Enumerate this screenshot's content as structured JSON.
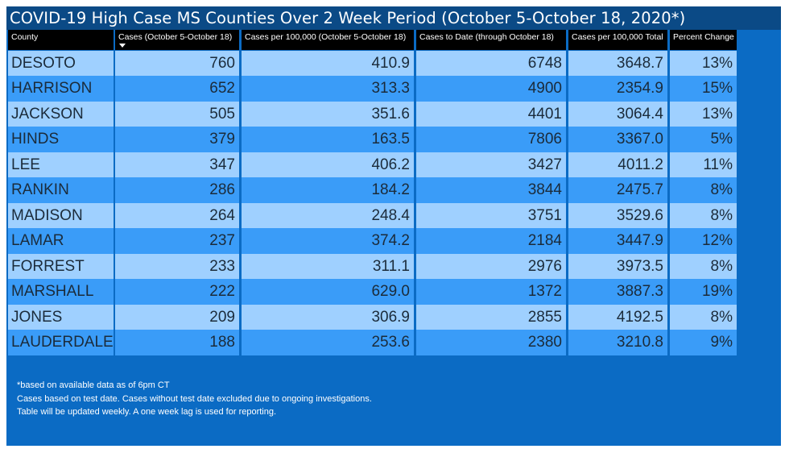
{
  "title": "COVID-19 High Case MS Counties Over 2 Week Period (October 5-October 18, 2020*)",
  "table": {
    "columns": [
      {
        "label": "County",
        "sorted": false
      },
      {
        "label": "Cases (October 5-October 18)",
        "sorted": true,
        "sort_direction": "descending"
      },
      {
        "label": "Cases per 100,000 (October 5-October 18)",
        "sorted": false
      },
      {
        "label": "Cases to Date (through October 18)",
        "sorted": false
      },
      {
        "label": "Cases per 100,000 Total",
        "sorted": false
      },
      {
        "label": "Percent Change",
        "sorted": false
      }
    ],
    "rows": [
      {
        "county": "DESOTO",
        "cases": "760",
        "cases_per_100k": "410.9",
        "cases_to_date": "6748",
        "cases_per_100k_total": "3648.7",
        "percent_change": "13%"
      },
      {
        "county": "HARRISON",
        "cases": "652",
        "cases_per_100k": "313.3",
        "cases_to_date": "4900",
        "cases_per_100k_total": "2354.9",
        "percent_change": "15%"
      },
      {
        "county": "JACKSON",
        "cases": "505",
        "cases_per_100k": "351.6",
        "cases_to_date": "4401",
        "cases_per_100k_total": "3064.4",
        "percent_change": "13%"
      },
      {
        "county": "HINDS",
        "cases": "379",
        "cases_per_100k": "163.5",
        "cases_to_date": "7806",
        "cases_per_100k_total": "3367.0",
        "percent_change": "5%"
      },
      {
        "county": "LEE",
        "cases": "347",
        "cases_per_100k": "406.2",
        "cases_to_date": "3427",
        "cases_per_100k_total": "4011.2",
        "percent_change": "11%"
      },
      {
        "county": "RANKIN",
        "cases": "286",
        "cases_per_100k": "184.2",
        "cases_to_date": "3844",
        "cases_per_100k_total": "2475.7",
        "percent_change": "8%"
      },
      {
        "county": "MADISON",
        "cases": "264",
        "cases_per_100k": "248.4",
        "cases_to_date": "3751",
        "cases_per_100k_total": "3529.6",
        "percent_change": "8%"
      },
      {
        "county": "LAMAR",
        "cases": "237",
        "cases_per_100k": "374.2",
        "cases_to_date": "2184",
        "cases_per_100k_total": "3447.9",
        "percent_change": "12%"
      },
      {
        "county": "FORREST",
        "cases": "233",
        "cases_per_100k": "311.1",
        "cases_to_date": "2976",
        "cases_per_100k_total": "3973.5",
        "percent_change": "8%"
      },
      {
        "county": "MARSHALL",
        "cases": "222",
        "cases_per_100k": "629.0",
        "cases_to_date": "1372",
        "cases_per_100k_total": "3887.3",
        "percent_change": "19%"
      },
      {
        "county": "JONES",
        "cases": "209",
        "cases_per_100k": "306.9",
        "cases_to_date": "2855",
        "cases_per_100k_total": "4192.5",
        "percent_change": "8%"
      },
      {
        "county": "LAUDERDALE",
        "cases": "188",
        "cases_per_100k": "253.6",
        "cases_to_date": "2380",
        "cases_per_100k_total": "3210.8",
        "percent_change": "9%"
      }
    ]
  },
  "footer": {
    "lines": [
      "*based on available data as of 6pm CT",
      "Cases based on test date. Cases without test date excluded due to ongoing investigations.",
      "Table will be updated weekly. A one week lag is used for reporting."
    ]
  },
  "colors": {
    "panel_background": "#0b6bc4",
    "title_bar": "#0b4a86",
    "header_background": "#000000",
    "row_light": "#9fd0ff",
    "row_dark": "#3a9cf8",
    "cell_text": "#1b2b3a"
  },
  "icons": {
    "sort": "sort-descending-icon"
  }
}
